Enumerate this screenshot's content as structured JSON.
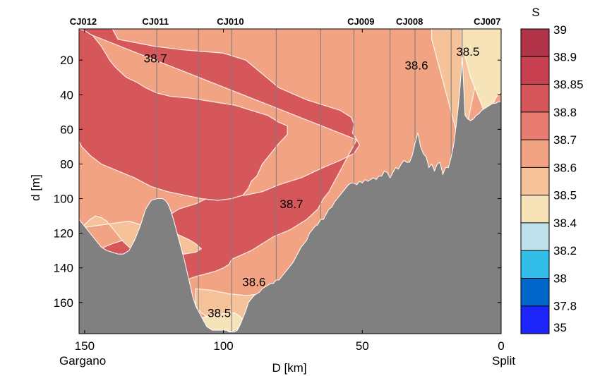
{
  "chart_data": {
    "type": "heatmap",
    "title": "",
    "xlabel": "D [km]",
    "ylabel": "d [m]",
    "xlim": [
      152,
      0
    ],
    "ylim": [
      178,
      2
    ],
    "x_ticks": [
      150,
      100,
      50,
      0
    ],
    "y_ticks": [
      20,
      40,
      60,
      80,
      100,
      120,
      140,
      160
    ],
    "x_end_labels": {
      "left": "Gargano",
      "right": "Split"
    },
    "stations": [
      {
        "name": "CJ012",
        "x": 150.5
      },
      {
        "name": "CJ011",
        "x": 124.5
      },
      {
        "name": "CJ010",
        "x": 97.5
      },
      {
        "name": "CJ009",
        "x": 50.5
      },
      {
        "name": "CJ008",
        "x": 33.0
      },
      {
        "name": "CJ007",
        "x": 5.0
      }
    ],
    "cast_lines_x": [
      124,
      109,
      97,
      81,
      65,
      53,
      40,
      31,
      18,
      14
    ],
    "contour_labels": [
      {
        "text": "38.7",
        "x": 124.5,
        "y": 19
      },
      {
        "text": "38.6",
        "x": 30.5,
        "y": 23
      },
      {
        "text": "38.5",
        "x": 12,
        "y": 15
      },
      {
        "text": "38.7",
        "x": 75.5,
        "y": 103
      },
      {
        "text": "38.6",
        "x": 89,
        "y": 148
      },
      {
        "text": "38.5",
        "x": 101.5,
        "y": 166
      }
    ],
    "regions": [
      {
        "level": 38.8,
        "x": [
          153,
          140,
          138,
          125,
          115,
          100,
          92,
          86,
          80,
          70,
          58,
          54,
          53,
          53.5,
          52,
          51,
          53,
          58,
          64,
          72,
          80,
          86,
          92,
          100,
          106,
          110,
          116,
          122,
          130,
          136,
          140,
          143,
          145,
          143,
          140,
          135,
          130,
          120,
          115,
          110,
          103,
          100,
          98,
          97,
          90,
          86,
          82,
          76,
          70,
          66,
          64,
          62,
          60,
          58,
          56,
          54,
          52
        ],
        "y": [
          2,
          2,
          8,
          12,
          14,
          16,
          20,
          28,
          36,
          43,
          49,
          53,
          57,
          62,
          66,
          69,
          74,
          78,
          82,
          88,
          92,
          96,
          98,
          99,
          100,
          103,
          106,
          112,
          118,
          124,
          126,
          128,
          132,
          136,
          140,
          143,
          146,
          148,
          148,
          145,
          142,
          140,
          138,
          135,
          130,
          126,
          122,
          118,
          112,
          106,
          100,
          96,
          90,
          84,
          78,
          72,
          66
        ]
      },
      {
        "level": 38.8,
        "x": [
          145,
          142,
          138,
          134,
          130,
          127,
          125,
          124,
          125,
          127,
          130,
          134,
          138,
          142,
          145,
          146
        ],
        "y": [
          56,
          54,
          53,
          52,
          51,
          52,
          54,
          56,
          58,
          60,
          61,
          61,
          60,
          59,
          58,
          57
        ]
      },
      {
        "level": 38.8,
        "x": [
          152,
          150,
          147,
          144,
          141,
          139,
          137,
          135,
          131,
          128,
          124,
          119,
          112,
          104,
          96,
          90,
          84,
          80,
          77,
          77,
          80,
          83,
          86,
          88,
          90,
          91,
          93,
          97,
          102,
          108,
          114,
          120,
          126,
          132,
          138,
          144,
          148,
          151,
          152
        ],
        "y": [
          2,
          3,
          6,
          12,
          20,
          24,
          27,
          30,
          33,
          36,
          39,
          41,
          42,
          44,
          46,
          49,
          52,
          56,
          58,
          63,
          68,
          74,
          80,
          87,
          90,
          94,
          98,
          100,
          101,
          100,
          98,
          96,
          93,
          88,
          84,
          80,
          75,
          70,
          67
        ]
      },
      {
        "level": 38.6,
        "x": [
          134,
          128,
          120,
          116,
          112,
          110,
          108,
          110,
          114,
          118,
          124,
          128,
          132,
          134,
          136,
          138,
          140,
          142,
          144,
          146,
          148,
          150,
          152
        ],
        "y": [
          113,
          116,
          119,
          121,
          124,
          126,
          129,
          131,
          132,
          132,
          133,
          132,
          130,
          128,
          125,
          121,
          117,
          113,
          111,
          110,
          112,
          115,
          117
        ]
      },
      {
        "level": 38.6,
        "x": [
          25,
          24,
          23,
          22,
          21,
          20,
          19,
          18,
          17,
          16,
          14,
          13,
          12,
          11,
          10,
          9,
          8,
          7,
          6,
          5,
          4,
          3,
          2,
          1,
          0,
          0,
          25
        ],
        "y": [
          8,
          14,
          20,
          26,
          32,
          38,
          44,
          50,
          56,
          62,
          64,
          62,
          56,
          48,
          40,
          32,
          28,
          26,
          26,
          28,
          30,
          30,
          28,
          26,
          24,
          2,
          2
        ]
      },
      {
        "level": 38.6,
        "x": [
          110,
          104,
          98,
          92,
          86,
          80,
          76,
          72,
          68,
          64,
          62,
          60,
          58,
          56,
          60,
          66,
          72,
          78,
          84,
          88,
          92,
          96,
          100,
          104,
          108,
          110
        ],
        "y": [
          152,
          153,
          155,
          156,
          155,
          154,
          153,
          152,
          150,
          148,
          146,
          144,
          142,
          150,
          156,
          160,
          163,
          166,
          168,
          170,
          171,
          172,
          172,
          170,
          166,
          162
        ]
      },
      {
        "level": 38.4,
        "x": [
          14,
          13,
          12,
          11,
          10,
          9,
          8,
          7,
          6,
          5,
          4,
          3,
          2,
          1,
          0,
          0,
          14
        ],
        "y": [
          12,
          18,
          24,
          30,
          34,
          38,
          42,
          46,
          50,
          52,
          50,
          46,
          42,
          40,
          38,
          2,
          2
        ]
      },
      {
        "level": 38.4,
        "x": [
          110,
          106,
          102,
          98,
          96,
          94,
          92,
          96,
          100,
          104,
          108
        ],
        "y": [
          170,
          168,
          167,
          166,
          166,
          168,
          172,
          176,
          178,
          178,
          175
        ]
      }
    ],
    "seafloor": {
      "x": [
        152,
        150,
        148,
        146,
        144,
        142,
        140,
        138,
        136,
        134,
        132,
        130,
        128,
        126,
        124,
        123,
        122,
        121,
        120,
        119,
        118,
        117,
        116,
        115,
        114,
        113,
        112,
        111,
        110,
        109,
        108,
        107,
        106,
        105,
        104,
        103,
        102,
        101,
        100,
        99,
        98,
        97,
        96,
        95,
        94,
        93,
        92,
        91,
        90,
        89,
        88,
        87,
        86,
        85,
        84,
        83,
        82,
        81,
        80,
        79,
        78,
        77,
        76,
        75,
        74,
        73,
        72,
        71,
        70,
        69,
        68,
        67,
        66,
        65,
        64,
        63,
        62,
        61,
        60,
        59,
        58,
        57,
        56,
        55,
        54,
        53,
        52,
        51,
        50,
        49,
        48,
        47,
        46,
        45,
        44,
        43,
        42,
        41,
        40,
        39,
        38,
        37,
        36,
        35,
        34,
        33,
        32,
        31,
        30,
        29,
        28,
        27,
        26,
        25,
        24,
        23,
        22,
        21,
        20,
        19,
        18,
        17,
        16,
        15,
        14,
        13,
        12,
        11,
        10,
        9,
        8,
        7,
        6,
        5,
        4,
        3,
        2,
        1,
        0
      ],
      "y": [
        112,
        116,
        120,
        124,
        128,
        130,
        131,
        132,
        132,
        130,
        124,
        116,
        106,
        101,
        100,
        100,
        100,
        101,
        103,
        107,
        112,
        118,
        124,
        130,
        136,
        143,
        150,
        157,
        162,
        165,
        168,
        171,
        174,
        175,
        176,
        176,
        176,
        176,
        176,
        176,
        177,
        177,
        177,
        176,
        173,
        169,
        165,
        160,
        158,
        156,
        155,
        154,
        152,
        151,
        150,
        149,
        149,
        147,
        147,
        145,
        143,
        141,
        139,
        137,
        134,
        131,
        128,
        126,
        124,
        120,
        118,
        116,
        115,
        112,
        112,
        109,
        106,
        105,
        102,
        100,
        98,
        96,
        94,
        92,
        91,
        91,
        92,
        90,
        91,
        89,
        90,
        89,
        88,
        89,
        87,
        87,
        84,
        85,
        88,
        85,
        82,
        83,
        80,
        78,
        79,
        79,
        75,
        68,
        62,
        70,
        74,
        76,
        82,
        80,
        84,
        80,
        79,
        86,
        82,
        82,
        76,
        68,
        55,
        40,
        18,
        52,
        54,
        55,
        54,
        52,
        51,
        49,
        48,
        47,
        46,
        45,
        45,
        44,
        44
      ]
    },
    "colorbar": {
      "title": "S",
      "levels": [
        "39",
        "38.9",
        "38.85",
        "38.8",
        "38.7",
        "38.6",
        "38.5",
        "38.4",
        "38.2",
        "38",
        "37.8",
        "35"
      ],
      "colors": [
        "#b13347",
        "#c8404f",
        "#d65759",
        "#e87b72",
        "#f1a383",
        "#f5c29a",
        "#f6e3b8",
        "#bfe1ec",
        "#33bde9",
        "#0066c9",
        "#1c24f9"
      ]
    },
    "colors": {
      "background_water": "#f1a383",
      "region_38.8": "#d65759",
      "region_38.6": "#f5c29a",
      "region_38.4": "#f6e3b8",
      "seafloor": "#808080",
      "cast_line": "#7a7a7a"
    }
  }
}
